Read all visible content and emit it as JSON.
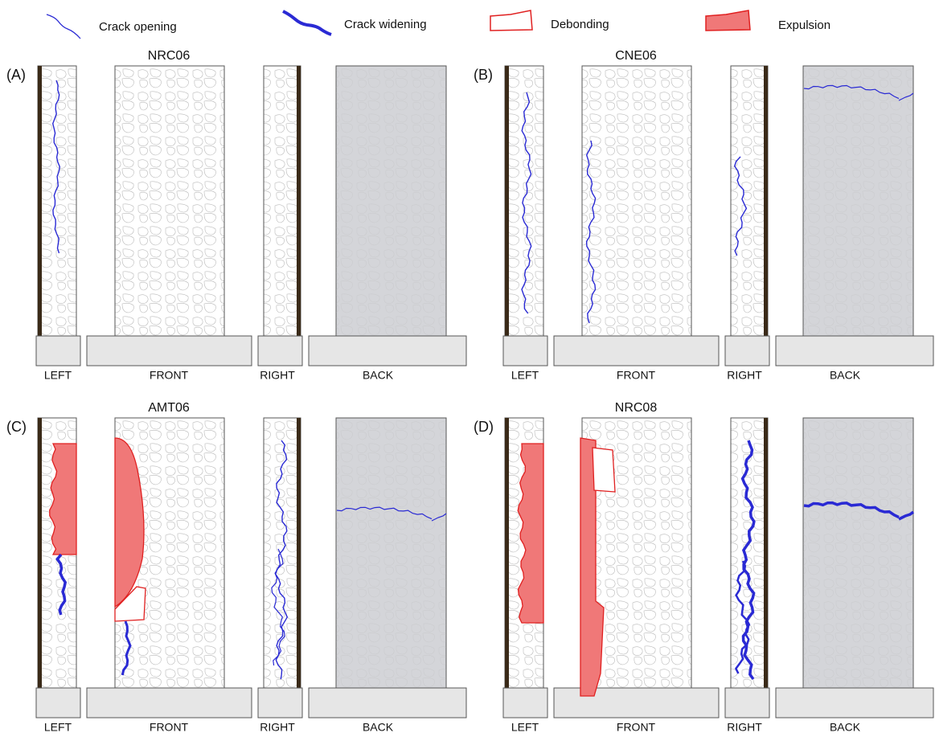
{
  "legend": [
    {
      "label": "Crack opening"
    },
    {
      "label": "Crack widening"
    },
    {
      "label": "Debonding"
    },
    {
      "label": "Expulsion"
    }
  ],
  "panels": [
    {
      "letter": "(A)",
      "title": "NRC06",
      "faces": [
        "LEFT",
        "FRONT",
        "RIGHT",
        "BACK"
      ]
    },
    {
      "letter": "(B)",
      "title": "CNE06",
      "faces": [
        "LEFT",
        "FRONT",
        "RIGHT",
        "BACK"
      ]
    },
    {
      "letter": "(C)",
      "title": "AMT06",
      "faces": [
        "LEFT",
        "FRONT",
        "RIGHT",
        "BACK"
      ]
    },
    {
      "letter": "(D)",
      "title": "NRC08",
      "faces": [
        "LEFT",
        "FRONT",
        "RIGHT",
        "BACK"
      ]
    }
  ]
}
